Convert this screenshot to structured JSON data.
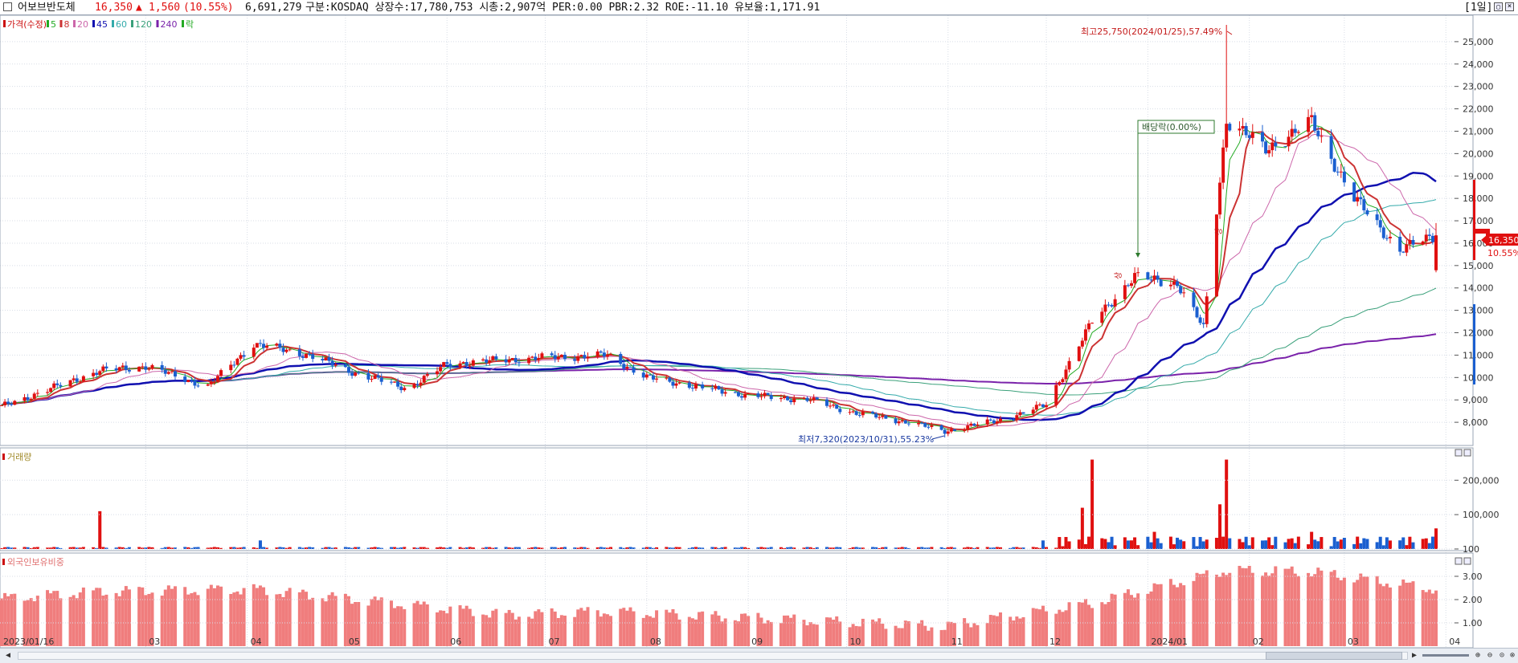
{
  "header": {
    "checkbox_label": "",
    "stock_name": "어보브반도체",
    "price": "16,350",
    "change_arrow": "▲",
    "change": "1,560",
    "change_pct": "(10.55%)",
    "volume": "6,691,279",
    "info": "구분:KOSDAQ 상장수:17,780,753 시총:2,907억 PER:0.00 PBR:2.32 ROE:-11.10 유보율:1,171.91",
    "period": "[1일]"
  },
  "colors": {
    "up": "#e01010",
    "down": "#1a5fd0",
    "ma5": "#22aa22",
    "ma8": "#cc3333",
    "ma20": "#cc66aa",
    "ma45": "#1010b0",
    "ma60": "#33aaaa",
    "ma120": "#3aa07a",
    "ma240": "#7a22aa",
    "grid": "#d8dde6",
    "foreign": "#f07d7d"
  },
  "price_panel": {
    "legend": [
      {
        "label": "가격(수정)",
        "color": "#cc1111"
      },
      {
        "label": "5",
        "color": "#22aa22"
      },
      {
        "label": "8",
        "color": "#cc3333"
      },
      {
        "label": "20",
        "color": "#cc66aa"
      },
      {
        "label": "45",
        "color": "#1010b0"
      },
      {
        "label": "60",
        "color": "#33aaaa"
      },
      {
        "label": "120",
        "color": "#3aa07a"
      },
      {
        "label": "240",
        "color": "#7a22aa"
      },
      {
        "label": "락",
        "color": "#22aa22"
      }
    ],
    "annotations": {
      "high": "최고25,750(2024/01/25),57.49%",
      "low": "최저7,320(2023/10/31),55.23%",
      "dividend": "배당락(0.00%)",
      "upper_limit": "상"
    },
    "price_tag": "16,350",
    "pct_tag": "10.55%"
  },
  "volume_panel": {
    "legend": "거래량"
  },
  "foreign_panel": {
    "legend": "외국인보유비중"
  },
  "x_axis_labels": [
    "2023/01/16",
    "03",
    "04",
    "05",
    "06",
    "07",
    "08",
    "09",
    "10",
    "11",
    "12",
    "2024/01",
    "02",
    "03",
    "04"
  ],
  "chart_data": [
    {
      "type": "candlestick",
      "title": "어보브반도체 가격(수정)",
      "x": [
        "2023/01/16",
        "2023/02/15",
        "2023/03/01",
        "2023/03/20",
        "2023/04/03",
        "2023/04/20",
        "2023/05/02",
        "2023/05/20",
        "2023/06/01",
        "2023/06/20",
        "2023/07/03",
        "2023/07/20",
        "2023/08/01",
        "2023/08/20",
        "2023/09/01",
        "2023/09/20",
        "2023/10/04",
        "2023/10/20",
        "2023/10/31",
        "2023/11/20",
        "2023/12/01",
        "2023/12/15",
        "2023/12/28",
        "2024/01/10",
        "2024/01/18",
        "2024/01/25",
        "2024/02/06",
        "2024/02/20",
        "2024/03/04",
        "2024/03/18",
        "2024/03/29"
      ],
      "close": [
        8700,
        10300,
        10500,
        9600,
        11500,
        11000,
        10300,
        9500,
        10600,
        10800,
        10900,
        11000,
        10000,
        9500,
        9200,
        9000,
        8400,
        8000,
        7600,
        8200,
        8800,
        12500,
        14500,
        14200,
        12200,
        21500,
        20200,
        21400,
        18000,
        15700,
        16350
      ],
      "ylim": [
        7000,
        26000
      ],
      "yticks": [
        8000,
        9000,
        10000,
        11000,
        12000,
        13000,
        14000,
        15000,
        16000,
        17000,
        18000,
        19000,
        20000,
        21000,
        22000,
        23000,
        24000,
        25000
      ],
      "high_point": {
        "date": "2024/01/25",
        "value": 25750
      },
      "low_point": {
        "date": "2023/10/31",
        "value": 7320
      },
      "last": 16350
    },
    {
      "type": "bar",
      "title": "거래량",
      "x": [
        "2023/02/15",
        "2023/04/05",
        "2023/11/30",
        "2023/12/12",
        "2023/12/15",
        "2024/01/03",
        "2024/01/23",
        "2024/01/25",
        "2024/02/20",
        "2024/03/29"
      ],
      "values": [
        110000,
        25000,
        25000,
        120000,
        260000,
        50000,
        130000,
        260000,
        50000,
        60000
      ],
      "yticks": [
        100,
        100000,
        200000
      ]
    },
    {
      "type": "bar",
      "title": "외국인보유비중",
      "x": [
        "2023/01/16",
        "2023/02/15",
        "2023/04/03",
        "2023/06/20",
        "2023/07/20",
        "2023/10/31",
        "2023/12/15",
        "2024/01/25",
        "2024/02/20",
        "2024/03/29"
      ],
      "values": [
        2.05,
        2.35,
        2.45,
        1.35,
        1.5,
        0.85,
        1.85,
        3.25,
        3.2,
        2.45
      ],
      "yticks": [
        1.0,
        2.0,
        3.0
      ]
    }
  ]
}
